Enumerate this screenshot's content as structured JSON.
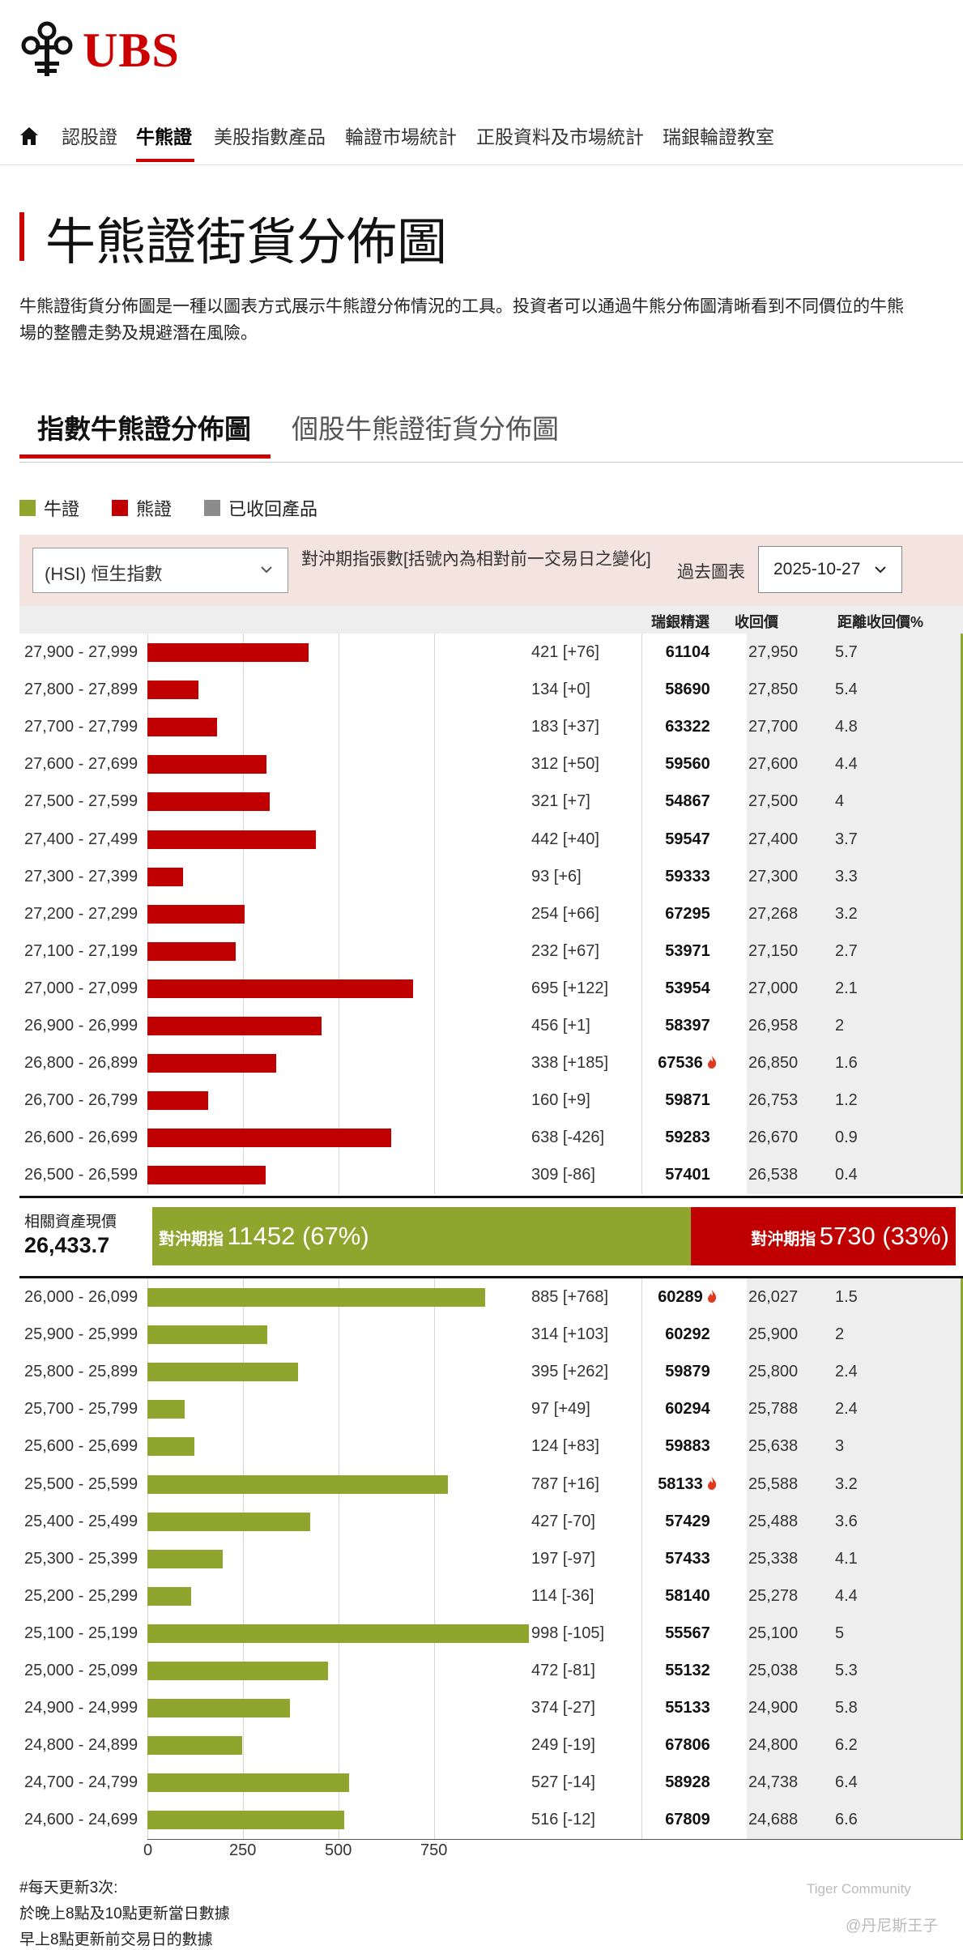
{
  "header": {
    "brand": "UBS",
    "logo": "ubs-keys-logo"
  },
  "nav": {
    "home_icon": "home-icon",
    "items": [
      "認股證",
      "牛熊證",
      "美股指數產品",
      "輪證市場統計",
      "正股資料及市場統計",
      "瑞銀輪證教室"
    ],
    "active_index": 1
  },
  "page": {
    "title": "牛熊證街貨分佈圖",
    "intro_line1": "牛熊證街貨分佈圖是一種以圖表方式展示牛熊證分佈情況的工具。投資者可以通過牛熊分佈圖清晰看到不同價位的牛熊",
    "intro_line2": "場的整體走勢及規避潛在風險。"
  },
  "tabs": [
    {
      "label": "指數牛熊證分佈圖",
      "active": true
    },
    {
      "label": "個股牛熊證街貨分佈圖",
      "active": false
    }
  ],
  "legend": [
    {
      "label": "牛證",
      "color": "#8fa52e"
    },
    {
      "label": "熊證",
      "color": "#c00000"
    },
    {
      "label": "已收回產品",
      "color": "#8c8c8c"
    }
  ],
  "controls": {
    "index_select": "(HSI) 恒生指數",
    "hedge_note": "對沖期指張數[括號內為相對前一交易日之變化]",
    "past_chart_label": "過去圖表",
    "date_select": "2025-10-27"
  },
  "columns": {
    "code": "瑞銀精選",
    "call_price": "收回價",
    "distance": "距離收回價%"
  },
  "spot": {
    "label": "相關資產現價",
    "value": "26,433.7"
  },
  "summary": {
    "bull_label": "對沖期指",
    "bull_value": "11452 (67%)",
    "bull_pct": 67,
    "bear_label": "對沖期指",
    "bear_value": "5730 (33%)",
    "bear_pct": 33
  },
  "chart_data": [
    {
      "type": "bar",
      "series": [
        {
          "name": "熊證",
          "color": "#c00000"
        }
      ],
      "xlim": [
        0,
        1000
      ],
      "xticks": [
        "0",
        "250",
        "500",
        "750"
      ],
      "rows": [
        {
          "range": "27,900 - 27,999",
          "value": 421,
          "count": "421 [+76]",
          "code": "61104",
          "hot": false,
          "call": "27,950",
          "pct": "5.7"
        },
        {
          "range": "27,800 - 27,899",
          "value": 134,
          "count": "134 [+0]",
          "code": "58690",
          "hot": false,
          "call": "27,850",
          "pct": "5.4"
        },
        {
          "range": "27,700 - 27,799",
          "value": 183,
          "count": "183 [+37]",
          "code": "63322",
          "hot": false,
          "call": "27,700",
          "pct": "4.8"
        },
        {
          "range": "27,600 - 27,699",
          "value": 312,
          "count": "312 [+50]",
          "code": "59560",
          "hot": false,
          "call": "27,600",
          "pct": "4.4"
        },
        {
          "range": "27,500 - 27,599",
          "value": 321,
          "count": "321 [+7]",
          "code": "54867",
          "hot": false,
          "call": "27,500",
          "pct": "4"
        },
        {
          "range": "27,400 - 27,499",
          "value": 442,
          "count": "442 [+40]",
          "code": "59547",
          "hot": false,
          "call": "27,400",
          "pct": "3.7"
        },
        {
          "range": "27,300 - 27,399",
          "value": 93,
          "count": "93 [+6]",
          "code": "59333",
          "hot": false,
          "call": "27,300",
          "pct": "3.3"
        },
        {
          "range": "27,200 - 27,299",
          "value": 254,
          "count": "254 [+66]",
          "code": "67295",
          "hot": false,
          "call": "27,268",
          "pct": "3.2"
        },
        {
          "range": "27,100 - 27,199",
          "value": 232,
          "count": "232 [+67]",
          "code": "53971",
          "hot": false,
          "call": "27,150",
          "pct": "2.7"
        },
        {
          "range": "27,000 - 27,099",
          "value": 695,
          "count": "695 [+122]",
          "code": "53954",
          "hot": false,
          "call": "27,000",
          "pct": "2.1"
        },
        {
          "range": "26,900 - 26,999",
          "value": 456,
          "count": "456 [+1]",
          "code": "58397",
          "hot": false,
          "call": "26,958",
          "pct": "2"
        },
        {
          "range": "26,800 - 26,899",
          "value": 338,
          "count": "338 [+185]",
          "code": "67536",
          "hot": true,
          "call": "26,850",
          "pct": "1.6"
        },
        {
          "range": "26,700 - 26,799",
          "value": 160,
          "count": "160 [+9]",
          "code": "59871",
          "hot": false,
          "call": "26,753",
          "pct": "1.2"
        },
        {
          "range": "26,600 - 26,699",
          "value": 638,
          "count": "638 [-426]",
          "code": "59283",
          "hot": false,
          "call": "26,670",
          "pct": "0.9"
        },
        {
          "range": "26,500 - 26,599",
          "value": 309,
          "count": "309 [-86]",
          "code": "57401",
          "hot": false,
          "call": "26,538",
          "pct": "0.4"
        }
      ]
    },
    {
      "type": "bar",
      "series": [
        {
          "name": "牛證",
          "color": "#8fa52e"
        }
      ],
      "xlim": [
        0,
        1000
      ],
      "xticks": [
        "0",
        "250",
        "500",
        "750"
      ],
      "rows": [
        {
          "range": "26,000 - 26,099",
          "value": 885,
          "count": "885 [+768]",
          "code": "60289",
          "hot": true,
          "call": "26,027",
          "pct": "1.5"
        },
        {
          "range": "25,900 - 25,999",
          "value": 314,
          "count": "314 [+103]",
          "code": "60292",
          "hot": false,
          "call": "25,900",
          "pct": "2"
        },
        {
          "range": "25,800 - 25,899",
          "value": 395,
          "count": "395 [+262]",
          "code": "59879",
          "hot": false,
          "call": "25,800",
          "pct": "2.4"
        },
        {
          "range": "25,700 - 25,799",
          "value": 97,
          "count": "97 [+49]",
          "code": "60294",
          "hot": false,
          "call": "25,788",
          "pct": "2.4"
        },
        {
          "range": "25,600 - 25,699",
          "value": 124,
          "count": "124 [+83]",
          "code": "59883",
          "hot": false,
          "call": "25,638",
          "pct": "3"
        },
        {
          "range": "25,500 - 25,599",
          "value": 787,
          "count": "787 [+16]",
          "code": "58133",
          "hot": true,
          "call": "25,588",
          "pct": "3.2"
        },
        {
          "range": "25,400 - 25,499",
          "value": 427,
          "count": "427 [-70]",
          "code": "57429",
          "hot": false,
          "call": "25,488",
          "pct": "3.6"
        },
        {
          "range": "25,300 - 25,399",
          "value": 197,
          "count": "197 [-97]",
          "code": "57433",
          "hot": false,
          "call": "25,338",
          "pct": "4.1"
        },
        {
          "range": "25,200 - 25,299",
          "value": 114,
          "count": "114 [-36]",
          "code": "58140",
          "hot": false,
          "call": "25,278",
          "pct": "4.4"
        },
        {
          "range": "25,100 - 25,199",
          "value": 998,
          "count": "998 [-105]",
          "code": "55567",
          "hot": false,
          "call": "25,100",
          "pct": "5"
        },
        {
          "range": "25,000 - 25,099",
          "value": 472,
          "count": "472 [-81]",
          "code": "55132",
          "hot": false,
          "call": "25,038",
          "pct": "5.3"
        },
        {
          "range": "24,900 - 24,999",
          "value": 374,
          "count": "374 [-27]",
          "code": "55133",
          "hot": false,
          "call": "24,900",
          "pct": "5.8"
        },
        {
          "range": "24,800 - 24,899",
          "value": 249,
          "count": "249 [-19]",
          "code": "67806",
          "hot": false,
          "call": "24,800",
          "pct": "6.2"
        },
        {
          "range": "24,700 - 24,799",
          "value": 527,
          "count": "527 [-14]",
          "code": "58928",
          "hot": false,
          "call": "24,738",
          "pct": "6.4"
        },
        {
          "range": "24,600 - 24,699",
          "value": 516,
          "count": "516 [-12]",
          "code": "67809",
          "hot": false,
          "call": "24,688",
          "pct": "6.6"
        }
      ]
    }
  ],
  "footnote": {
    "line1": "#每天更新3次:",
    "line2": "於晚上8點及10點更新當日數據",
    "line3": "早上8點更新前交易日的數據"
  },
  "watermark": {
    "line1": "Tiger Community",
    "line2": "@丹尼斯王子"
  }
}
